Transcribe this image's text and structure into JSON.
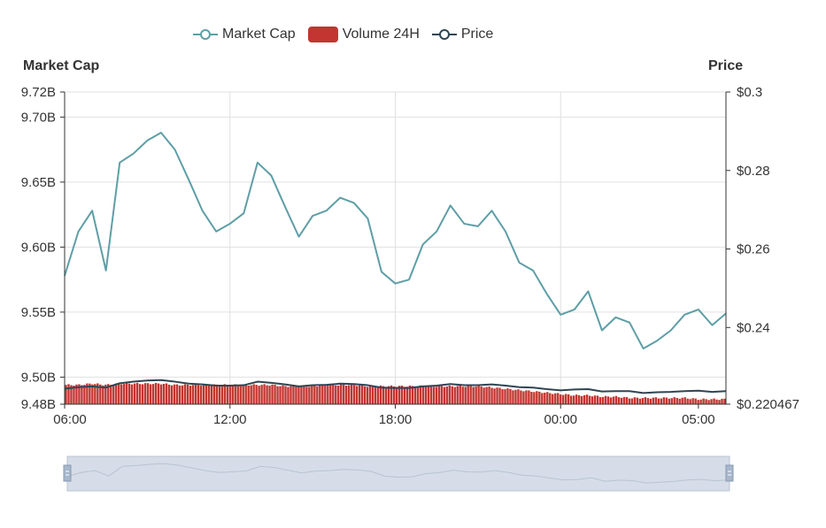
{
  "legend": {
    "market_cap": "Market Cap",
    "volume": "Volume 24H",
    "price": "Price"
  },
  "colors": {
    "market_cap": "#5e9ea6",
    "volume": "#c23531",
    "price": "#2f4554",
    "grid": "#e0e0e0",
    "axis": "#333333",
    "slider_fill": "#d6dde8",
    "slider_line": "#b8c3d2",
    "slider_handle": "#a7b7cc"
  },
  "chart_data": {
    "type": "line",
    "x_tick_labels": [
      "06:00",
      "12:00",
      "18:00",
      "00:00",
      "05:00"
    ],
    "y_left": {
      "title": "Market Cap",
      "tick_labels": [
        "9.48B",
        "9.50B",
        "9.55B",
        "9.60B",
        "9.65B",
        "9.70B",
        "9.72B"
      ],
      "tick_values": [
        9.4792,
        9.5,
        9.55,
        9.6,
        9.65,
        9.7,
        9.7193
      ],
      "min": 9.4792,
      "max": 9.7193
    },
    "y_right": {
      "title": "Price",
      "tick_labels": [
        "$0.220467",
        "$0.24",
        "$0.26",
        "$0.28",
        "$0.3"
      ],
      "tick_values": [
        0.220467,
        0.24,
        0.26,
        0.28,
        0.3
      ],
      "min": 0.220467,
      "max": 0.3
    },
    "grid": true,
    "legend_position": "top-center",
    "x_hours": [
      0,
      0.5,
      1,
      1.5,
      2,
      2.5,
      3,
      3.5,
      4,
      4.5,
      5,
      5.5,
      6,
      6.5,
      7,
      7.5,
      8,
      8.5,
      9,
      9.5,
      10,
      10.5,
      11,
      11.5,
      12,
      12.5,
      13,
      13.5,
      14,
      14.5,
      15,
      15.5,
      16,
      16.5,
      17,
      17.5,
      18,
      18.5,
      19,
      19.5,
      20,
      20.5,
      21,
      21.5,
      22,
      22.5,
      23,
      23.5,
      24
    ],
    "x_start_label": "06:00",
    "series": [
      {
        "name": "Market Cap",
        "axis": "left",
        "values": [
          9.578,
          9.612,
          9.628,
          9.582,
          9.665,
          9.672,
          9.682,
          9.688,
          9.675,
          9.652,
          9.628,
          9.612,
          9.618,
          9.626,
          9.665,
          9.655,
          9.631,
          9.608,
          9.624,
          9.628,
          9.638,
          9.634,
          9.622,
          9.581,
          9.572,
          9.575,
          9.602,
          9.612,
          9.632,
          9.618,
          9.616,
          9.628,
          9.612,
          9.588,
          9.582,
          9.564,
          9.548,
          9.552,
          9.566,
          9.536,
          9.546,
          9.542,
          9.522,
          9.528,
          9.536,
          9.548,
          9.552,
          9.54,
          9.549
        ]
      },
      {
        "name": "Price",
        "axis": "right",
        "values": [
          0.2244,
          0.2248,
          0.225,
          0.2247,
          0.2258,
          0.2262,
          0.2265,
          0.2266,
          0.2262,
          0.2257,
          0.2255,
          0.2252,
          0.2252,
          0.2253,
          0.2262,
          0.2259,
          0.2255,
          0.225,
          0.2253,
          0.2254,
          0.2257,
          0.2256,
          0.2253,
          0.2247,
          0.2246,
          0.2246,
          0.225,
          0.2252,
          0.2256,
          0.2253,
          0.2253,
          0.2255,
          0.2252,
          0.2248,
          0.2247,
          0.2243,
          0.224,
          0.2242,
          0.2243,
          0.2237,
          0.2238,
          0.2238,
          0.2233,
          0.2235,
          0.2236,
          0.2238,
          0.2239,
          0.2236,
          0.2238
        ]
      },
      {
        "name": "Volume 24H",
        "axis": "left",
        "values": [
          9.494,
          9.494,
          9.495,
          9.494,
          9.495,
          9.495,
          9.495,
          9.495,
          9.494,
          9.494,
          9.494,
          9.494,
          9.494,
          9.494,
          9.494,
          9.494,
          9.493,
          9.493,
          9.493,
          9.494,
          9.494,
          9.494,
          9.493,
          9.493,
          9.493,
          9.493,
          9.493,
          9.493,
          9.493,
          9.493,
          9.493,
          9.492,
          9.491,
          9.49,
          9.489,
          9.488,
          9.487,
          9.486,
          9.486,
          9.485,
          9.485,
          9.484,
          9.484,
          9.484,
          9.484,
          9.484,
          9.483,
          9.483,
          9.483
        ]
      }
    ]
  }
}
